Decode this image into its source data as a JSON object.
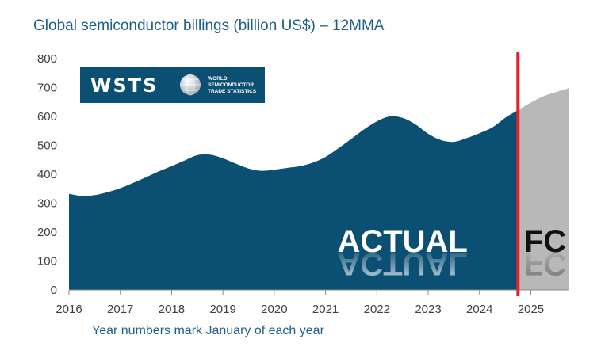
{
  "chart_data": {
    "type": "area",
    "title": "Global semiconductor billings (billion US$) – 12MMA",
    "note": "Year numbers mark January of each year",
    "ylim": [
      0,
      800
    ],
    "xlim": [
      2016,
      2025.75
    ],
    "yticks": [
      0,
      100,
      200,
      300,
      400,
      500,
      600,
      700,
      800
    ],
    "xticks": [
      "2016",
      "2017",
      "2018",
      "2019",
      "2020",
      "2021",
      "2022",
      "2023",
      "2024",
      "2025"
    ],
    "grid": false,
    "series": [
      {
        "name": "ACTUAL",
        "color": "#0b4f73",
        "x": [
          2016.0,
          2016.25,
          2016.5,
          2016.75,
          2017.0,
          2017.25,
          2017.5,
          2017.75,
          2018.0,
          2018.25,
          2018.5,
          2018.75,
          2019.0,
          2019.25,
          2019.5,
          2019.75,
          2020.0,
          2020.25,
          2020.5,
          2020.75,
          2021.0,
          2021.25,
          2021.5,
          2021.75,
          2022.0,
          2022.25,
          2022.5,
          2022.75,
          2023.0,
          2023.25,
          2023.5,
          2023.75,
          2024.0,
          2024.25,
          2024.5,
          2024.75
        ],
        "y": [
          332,
          325,
          328,
          338,
          352,
          370,
          390,
          410,
          428,
          447,
          466,
          468,
          455,
          437,
          420,
          412,
          416,
          422,
          428,
          440,
          460,
          490,
          522,
          555,
          583,
          600,
          595,
          573,
          540,
          518,
          512,
          525,
          542,
          562,
          595,
          622
        ]
      },
      {
        "name": "FC",
        "color": "#b8b8b8",
        "x": [
          2024.75,
          2025.0,
          2025.25,
          2025.5,
          2025.75
        ],
        "y": [
          622,
          648,
          670,
          685,
          698
        ]
      }
    ],
    "annotations": [
      {
        "label": "ACTUAL",
        "x": 2022.5,
        "y": 170
      },
      {
        "label": "FC",
        "x": 2025.25,
        "y": 170
      }
    ],
    "marker_line": {
      "x": 2024.75,
      "color": "#e8202a"
    }
  },
  "logo": {
    "mark": "WSTS",
    "lines": [
      "WORLD",
      "SEMICONDUCTOR",
      "TRADE STATISTICS"
    ],
    "icon": "globe-icon"
  }
}
